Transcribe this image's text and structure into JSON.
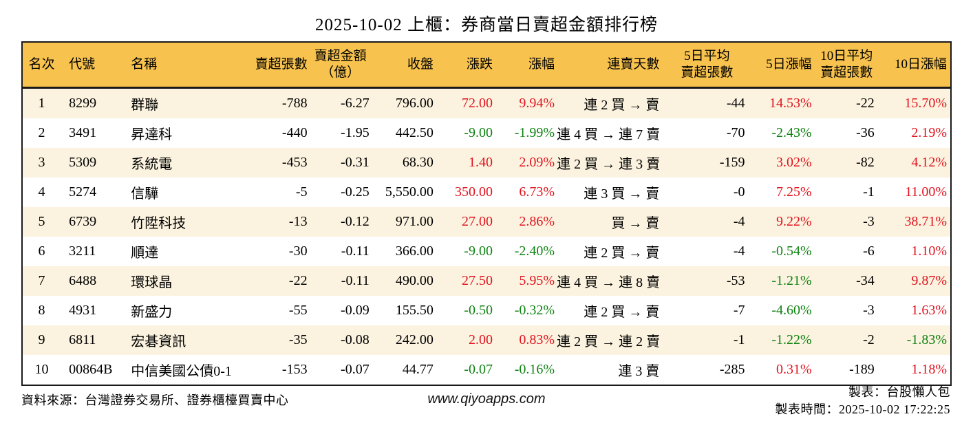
{
  "title": "2025-10-02 上櫃：券商當日賣超金額排行榜",
  "chart_data": {
    "type": "table",
    "columns": [
      {
        "key": "rank",
        "label": "名次"
      },
      {
        "key": "code",
        "label": "代號"
      },
      {
        "key": "name",
        "label": "名稱"
      },
      {
        "key": "net-sell-volume",
        "label": "賣超張數"
      },
      {
        "key": "net-sell-amount",
        "label": "賣超金額\n（億）"
      },
      {
        "key": "close",
        "label": "收盤"
      },
      {
        "key": "change",
        "label": "漲跌"
      },
      {
        "key": "change-pct",
        "label": "漲幅"
      },
      {
        "key": "streak",
        "label": "連賣天數"
      },
      {
        "key": "avg5-net-sell-volume",
        "label": "5日平均\n賣超張數"
      },
      {
        "key": "pct-5d",
        "label": "5日漲幅"
      },
      {
        "key": "avg10-net-sell-volume",
        "label": "10日平均\n賣超張數"
      },
      {
        "key": "pct-10d",
        "label": "10日漲幅"
      }
    ],
    "rows": [
      {
        "cells": [
          "1",
          "8299",
          "群聯",
          "-788",
          "-6.27",
          "796.00",
          "72.00",
          "9.94%",
          "連 2 買 → 賣",
          "-44",
          "14.53%",
          "-22",
          "15.70%"
        ],
        "cell_colors": [
          "",
          "",
          "",
          "",
          "",
          "",
          "red",
          "red",
          "",
          "",
          "red",
          "",
          "red"
        ]
      },
      {
        "cells": [
          "2",
          "3491",
          "昇達科",
          "-440",
          "-1.95",
          "442.50",
          "-9.00",
          "-1.99%",
          "連 4 買 → 連 7 賣",
          "-70",
          "-2.43%",
          "-36",
          "2.19%"
        ],
        "cell_colors": [
          "",
          "",
          "",
          "",
          "",
          "",
          "green",
          "green",
          "",
          "",
          "green",
          "",
          "red"
        ]
      },
      {
        "cells": [
          "3",
          "5309",
          "系統電",
          "-453",
          "-0.31",
          "68.30",
          "1.40",
          "2.09%",
          "連 2 買 → 連 3 賣",
          "-159",
          "3.02%",
          "-82",
          "4.12%"
        ],
        "cell_colors": [
          "",
          "",
          "",
          "",
          "",
          "",
          "red",
          "red",
          "",
          "",
          "red",
          "",
          "red"
        ]
      },
      {
        "cells": [
          "4",
          "5274",
          "信驊",
          "-5",
          "-0.25",
          "5,550.00",
          "350.00",
          "6.73%",
          "連 3 買 → 賣",
          "-0",
          "7.25%",
          "-1",
          "11.00%"
        ],
        "cell_colors": [
          "",
          "",
          "",
          "",
          "",
          "",
          "red",
          "red",
          "",
          "",
          "red",
          "",
          "red"
        ]
      },
      {
        "cells": [
          "5",
          "6739",
          "竹陞科技",
          "-13",
          "-0.12",
          "971.00",
          "27.00",
          "2.86%",
          "買 → 賣",
          "-4",
          "9.22%",
          "-3",
          "38.71%"
        ],
        "cell_colors": [
          "",
          "",
          "",
          "",
          "",
          "",
          "red",
          "red",
          "",
          "",
          "red",
          "",
          "red"
        ]
      },
      {
        "cells": [
          "6",
          "3211",
          "順達",
          "-30",
          "-0.11",
          "366.00",
          "-9.00",
          "-2.40%",
          "連 2 買 → 賣",
          "-4",
          "-0.54%",
          "-6",
          "1.10%"
        ],
        "cell_colors": [
          "",
          "",
          "",
          "",
          "",
          "",
          "green",
          "green",
          "",
          "",
          "green",
          "",
          "red"
        ]
      },
      {
        "cells": [
          "7",
          "6488",
          "環球晶",
          "-22",
          "-0.11",
          "490.00",
          "27.50",
          "5.95%",
          "連 4 買 → 連 8 賣",
          "-53",
          "-1.21%",
          "-34",
          "9.87%"
        ],
        "cell_colors": [
          "",
          "",
          "",
          "",
          "",
          "",
          "red",
          "red",
          "",
          "",
          "green",
          "",
          "red"
        ]
      },
      {
        "cells": [
          "8",
          "4931",
          "新盛力",
          "-55",
          "-0.09",
          "155.50",
          "-0.50",
          "-0.32%",
          "連 2 買 → 賣",
          "-7",
          "-4.60%",
          "-3",
          "1.63%"
        ],
        "cell_colors": [
          "",
          "",
          "",
          "",
          "",
          "",
          "green",
          "green",
          "",
          "",
          "green",
          "",
          "red"
        ]
      },
      {
        "cells": [
          "9",
          "6811",
          "宏碁資訊",
          "-35",
          "-0.08",
          "242.00",
          "2.00",
          "0.83%",
          "連 2 買 → 連 2 賣",
          "-1",
          "-1.22%",
          "-2",
          "-1.83%"
        ],
        "cell_colors": [
          "",
          "",
          "",
          "",
          "",
          "",
          "red",
          "red",
          "",
          "",
          "green",
          "",
          "green"
        ]
      },
      {
        "cells": [
          "10",
          "00864B",
          "中信美國公債0-1",
          "-153",
          "-0.07",
          "44.77",
          "-0.07",
          "-0.16%",
          "連 3 賣",
          "-285",
          "0.31%",
          "-189",
          "1.18%"
        ],
        "cell_colors": [
          "",
          "",
          "",
          "",
          "",
          "",
          "green",
          "green",
          "",
          "",
          "red",
          "",
          "red"
        ]
      }
    ]
  },
  "footer": {
    "source": "資料來源：台灣證券交易所、證券櫃檯買賣中心",
    "website": "www.qiyoapps.com",
    "made_by": "製表：台股懶人包",
    "made_time": "製表時間：2025-10-02 17:22:25"
  },
  "colors": {
    "up_red": "#e1121e",
    "down_green": "#0e8211",
    "header_bg": "#f7c24e",
    "stripe_bg": "#fbf3df",
    "border": "#1a1a1a"
  }
}
